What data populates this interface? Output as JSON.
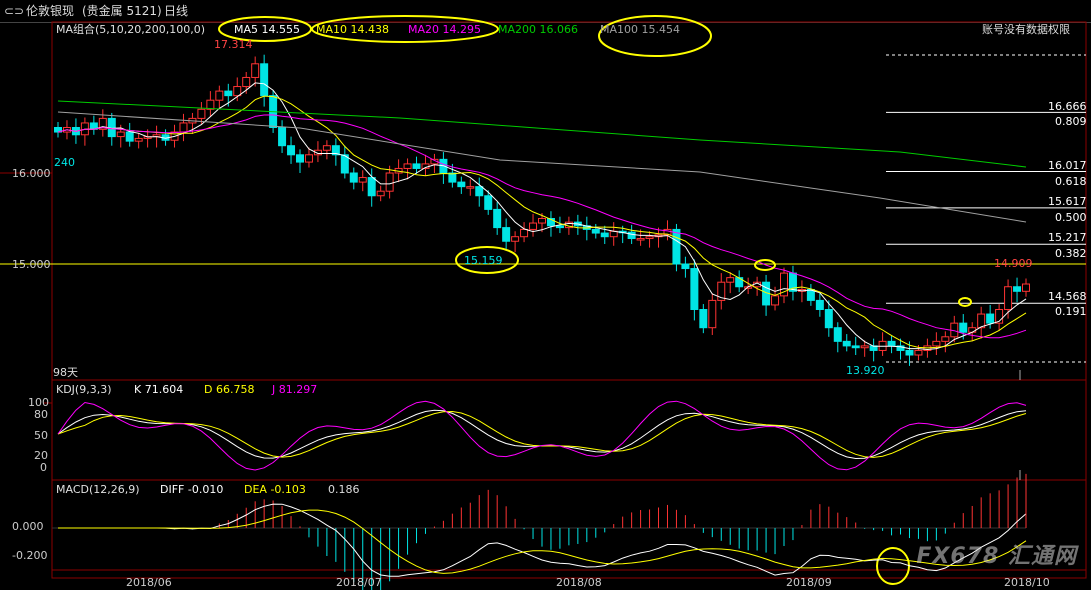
{
  "header": {
    "back_icon": "back-arrow-icon",
    "instrument": "伦敦银现",
    "category": "(贵金属 5121)",
    "period": "日线"
  },
  "price_panel": {
    "ma_group_label": "MA组合(5,10,20,200,100,0)",
    "ma5": "MA5 14.555",
    "ma10": "MA10 14.438",
    "ma20": "MA20 14.295",
    "ma200": "MA200 16.066",
    "ma100": "MA100 15.454",
    "account_note": "账号没有数据权限",
    "high_label": "17.314",
    "left_label": "240",
    "low_label_1": "15.159",
    "low_label_2": "13.920",
    "days_label": "98天",
    "recent_high_label": "14.909",
    "axis": {
      "y16": "16.000",
      "y15": "15.000"
    },
    "fib": [
      {
        "price": "16.666",
        "ratio": "0.809"
      },
      {
        "price": "16.017",
        "ratio": "0.618"
      },
      {
        "price": "15.617",
        "ratio": "0.500"
      },
      {
        "price": "15.217",
        "ratio": "0.382"
      },
      {
        "price": "14.568",
        "ratio": "0.191"
      }
    ]
  },
  "kdj_panel": {
    "label": "KDJ(9,3,3)",
    "k": "K 71.604",
    "d": "D 66.758",
    "j": "J 81.297",
    "ticks": [
      "100",
      "80",
      "50",
      "20",
      "0"
    ]
  },
  "macd_panel": {
    "label": "MACD(12,26,9)",
    "diff": "DIFF -0.010",
    "dea": "DEA -0.103",
    "macd": "0.186",
    "ticks": [
      "0.000",
      "-0.200"
    ]
  },
  "x_axis": [
    "2018/06",
    "2018/07",
    "2018/08",
    "2018/09",
    "2018/10"
  ],
  "watermark": "FX678 汇通网",
  "colors": {
    "ma5": "#ffffff",
    "ma10": "#ffff00",
    "ma20": "#ff00ff",
    "ma200": "#00cc00",
    "ma100": "#a0a0a0",
    "up": "#ff3333",
    "down": "#00e5e5",
    "highlight": "#ffff00"
  }
}
